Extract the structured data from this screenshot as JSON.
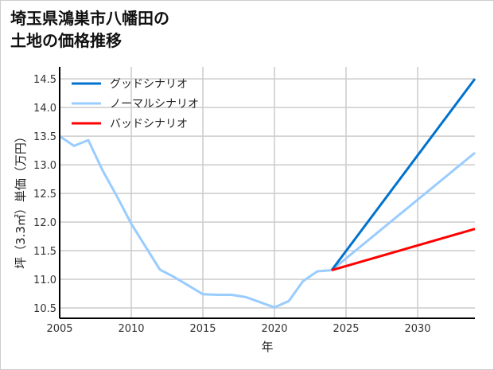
{
  "chart_data": {
    "type": "line",
    "title_lines": [
      "埼玉県鴻巣市八幡田の",
      "土地の価格推移"
    ],
    "xlabel": "年",
    "ylabel": "坪（3.3㎡）単価（万円）",
    "xlim": [
      2005,
      2034
    ],
    "ylim": [
      10.32,
      14.71
    ],
    "xticks": [
      2005,
      2010,
      2015,
      2020,
      2025,
      2030
    ],
    "yticks": [
      10.5,
      11.0,
      11.5,
      12.0,
      12.5,
      13.0,
      13.5,
      14.0,
      14.5
    ],
    "grid": true,
    "legend_position": "top-left",
    "series": [
      {
        "name": "グッドシナリオ",
        "color": "#0072CE",
        "x": [
          2024,
          2034
        ],
        "y": [
          11.16,
          14.5
        ]
      },
      {
        "name": "ノーマルシナリオ",
        "color": "#99CCFF",
        "x": [
          2005,
          2006,
          2007,
          2008,
          2009,
          2010,
          2011,
          2012,
          2013,
          2014,
          2015,
          2016,
          2017,
          2018,
          2019,
          2020,
          2021,
          2022,
          2023,
          2024,
          2034
        ],
        "y": [
          13.5,
          13.33,
          13.43,
          12.9,
          12.45,
          11.97,
          11.57,
          11.17,
          11.04,
          10.89,
          10.74,
          10.73,
          10.73,
          10.69,
          10.6,
          10.51,
          10.62,
          10.97,
          11.14,
          11.16,
          13.21
        ]
      },
      {
        "name": "バッドシナリオ",
        "color": "#FF0000",
        "x": [
          2024,
          2034
        ],
        "y": [
          11.16,
          11.88
        ]
      }
    ]
  }
}
